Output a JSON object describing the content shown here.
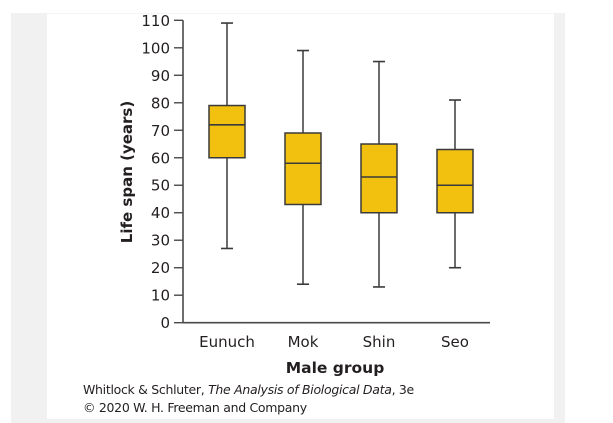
{
  "chart_data": {
    "type": "boxplot",
    "title": "",
    "xlabel": "Male group",
    "ylabel": "Life span (years)",
    "ylim": [
      0,
      110
    ],
    "yticks": [
      0,
      10,
      20,
      30,
      40,
      50,
      60,
      70,
      80,
      90,
      100,
      110
    ],
    "grid": false,
    "categories": [
      "Eunuch",
      "Mok",
      "Shin",
      "Seo"
    ],
    "boxes": [
      {
        "name": "Eunuch",
        "whisker_low": 27,
        "q1": 60,
        "median": 72,
        "q3": 79,
        "whisker_high": 109
      },
      {
        "name": "Mok",
        "whisker_low": 14,
        "q1": 43,
        "median": 58,
        "q3": 69,
        "whisker_high": 99
      },
      {
        "name": "Shin",
        "whisker_low": 13,
        "q1": 40,
        "median": 53,
        "q3": 65,
        "whisker_high": 95
      },
      {
        "name": "Seo",
        "whisker_low": 20,
        "q1": 40,
        "median": 50,
        "q3": 63,
        "whisker_high": 81
      }
    ],
    "colors": {
      "box_fill": "#f2c10f",
      "box_stroke": "#3a3a3a",
      "axis": "#4a4a4a",
      "text": "#231f20"
    }
  },
  "credit": {
    "authors": "Whitlock & Schluter, ",
    "book": "The Analysis of Biological Data",
    "edition": ", 3e",
    "copyright": "© 2020 W. H. Freeman and Company"
  }
}
